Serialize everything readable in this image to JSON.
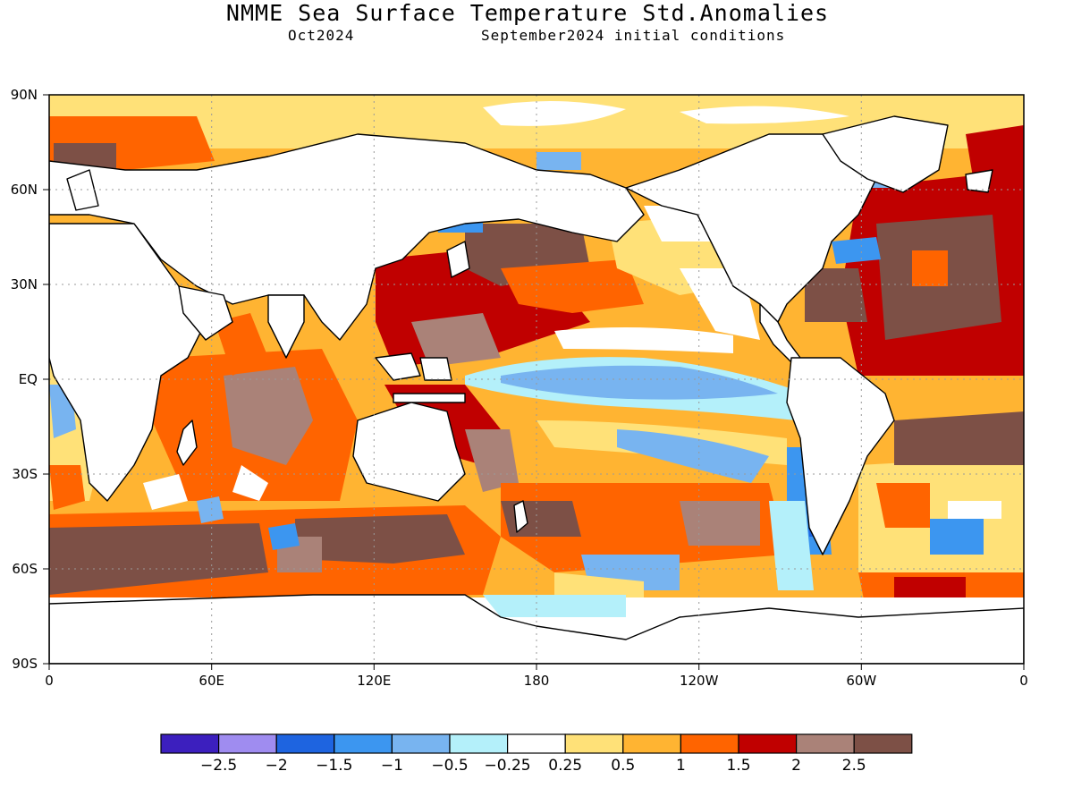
{
  "title": "NMME Sea Surface Temperature Std.Anomalies",
  "subtitle_left": "Oct2024",
  "subtitle_right": "September2024 initial conditions",
  "axes": {
    "lat_labels": [
      "90N",
      "60N",
      "30N",
      "EQ",
      "30S",
      "60S",
      "90S"
    ],
    "lat_values": [
      90,
      60,
      30,
      0,
      -30,
      -60,
      -90
    ],
    "lon_labels": [
      "0",
      "60E",
      "120E",
      "180",
      "120W",
      "60W",
      "0"
    ],
    "lon_values": [
      0,
      60,
      120,
      180,
      240,
      300,
      360
    ]
  },
  "colorbar": {
    "colors": [
      "#3c1fbe",
      "#9f8cf0",
      "#1e64e0",
      "#3c96f0",
      "#78b4f0",
      "#b4f0fa",
      "#ffffff",
      "#ffe178",
      "#ffb432",
      "#ff6400",
      "#c00000",
      "#aa8278",
      "#7d5046"
    ],
    "tick_labels": [
      "-2.5",
      "-2",
      "-1.5",
      "-1",
      "-0.5",
      "-0.25",
      "0.25",
      "0.5",
      "1",
      "1.5",
      "2",
      "2.5"
    ]
  },
  "anomaly_colors": {
    "land": "#ffffff",
    "coastline": "#000000",
    "grid": "#9a9a9a"
  }
}
